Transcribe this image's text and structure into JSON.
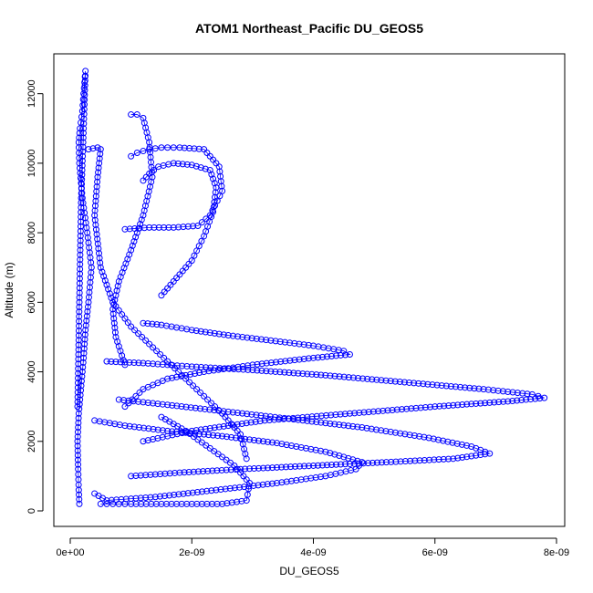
{
  "chart_data": {
    "type": "scatter",
    "title": "ATOM1 Northeast_Pacific DU_GEOS5",
    "xlabel": "DU_GEOS5",
    "ylabel": "Altitude (m)",
    "xlim": [
      0,
      8e-09
    ],
    "ylim": [
      0,
      12700
    ],
    "x_ticks": [
      0,
      2e-09,
      4e-09,
      6e-09,
      8e-09
    ],
    "x_tick_labels": [
      "0e+00",
      "2e-09",
      "4e-09",
      "6e-09",
      "8e-09"
    ],
    "y_ticks": [
      0,
      2000,
      4000,
      6000,
      8000,
      10000,
      12000
    ],
    "y_tick_labels": [
      "0",
      "2000",
      "4000",
      "6000",
      "8000",
      "10000",
      "12000"
    ],
    "grid": false,
    "legend": "none",
    "series": [
      {
        "color": "#0000ff",
        "marker": "open-circle",
        "connected": true,
        "x": [
          1.5e-10,
          1.4e-10,
          1.3e-10,
          1.2e-10,
          1.4e-10,
          1.8e-10,
          2.2e-10,
          2.5e-10,
          3e-10,
          3.5e-10,
          2.8e-10,
          2e-10,
          1.5e-10,
          1.4e-10,
          1.6e-10,
          2e-10,
          2.2e-10,
          2.5e-10,
          2.2e-10,
          1.8e-10,
          1.5e-10,
          1.2e-10
        ],
        "y": [
          200,
          600,
          1200,
          2000,
          2800,
          3600,
          4400,
          5200,
          6000,
          7000,
          8000,
          9000,
          10000,
          10600,
          11000,
          11500,
          12000,
          12650,
          11000,
          9000,
          6000,
          3000
        ]
      },
      {
        "color": "#0000ff",
        "marker": "open-circle",
        "connected": true,
        "x": [
          1.2e-09,
          1.5e-09,
          2e-09,
          2.6e-09,
          3.3e-09,
          4e-09,
          4.5e-09,
          4.6e-09,
          4e-09,
          3e-09,
          2.2e-09,
          1.6e-09,
          1.2e-09,
          9e-10
        ],
        "y": [
          5400,
          5350,
          5200,
          5050,
          4900,
          4750,
          4600,
          4500,
          4400,
          4200,
          4000,
          3800,
          3500,
          3000
        ]
      },
      {
        "color": "#0000ff",
        "marker": "open-circle",
        "connected": true,
        "x": [
          6e-10,
          1.2e-09,
          2e-09,
          3e-09,
          4.2e-09,
          5.5e-09,
          6.8e-09,
          7.6e-09,
          7.8e-09,
          7.2e-09,
          6e-09,
          4.6e-09,
          3.2e-09,
          2e-09,
          1.2e-09
        ],
        "y": [
          4300,
          4250,
          4150,
          4050,
          3900,
          3700,
          3500,
          3350,
          3250,
          3150,
          3000,
          2800,
          2600,
          2300,
          2000
        ]
      },
      {
        "color": "#0000ff",
        "marker": "open-circle",
        "connected": true,
        "x": [
          8e-10,
          1.6e-09,
          2.6e-09,
          3.6e-09,
          4.8e-09,
          5.9e-09,
          6.6e-09,
          6.9e-09,
          6.3e-09,
          5.2e-09,
          4e-09,
          2.8e-09,
          1.8e-09,
          1e-09
        ],
        "y": [
          3200,
          3050,
          2850,
          2650,
          2400,
          2100,
          1850,
          1650,
          1500,
          1400,
          1300,
          1200,
          1100,
          1000
        ]
      },
      {
        "color": "#0000ff",
        "marker": "open-circle",
        "connected": true,
        "x": [
          4e-10,
          9e-10,
          1.6e-09,
          2.5e-09,
          3.4e-09,
          4.2e-09,
          4.8e-09,
          4.7e-09,
          4.2e-09,
          3.4e-09,
          2.4e-09,
          1.4e-09,
          6e-10,
          4e-10
        ],
        "y": [
          2600,
          2450,
          2300,
          2150,
          1950,
          1700,
          1400,
          1200,
          1000,
          800,
          600,
          400,
          300,
          500
        ]
      },
      {
        "color": "#0000ff",
        "marker": "open-circle",
        "connected": true,
        "x": [
          5e-10,
          7e-10,
          1e-09,
          1.5e-09,
          2e-09,
          2.5e-09,
          2.9e-09,
          2.95e-09,
          2.7e-09,
          2.3e-09,
          1.9e-09,
          1.5e-09
        ],
        "y": [
          200,
          200,
          200,
          200,
          200,
          200,
          300,
          800,
          1300,
          1800,
          2300,
          2700
        ]
      },
      {
        "color": "#0000ff",
        "marker": "open-circle",
        "connected": true,
        "x": [
          9e-10,
          1.3e-09,
          1.7e-09,
          2.1e-09,
          2.3e-09,
          2.5e-09,
          2.45e-09,
          2.2e-09,
          1.8e-09,
          1.5e-09,
          1.3e-09,
          1.1e-09,
          1e-09
        ],
        "y": [
          8100,
          8150,
          8150,
          8200,
          8500,
          9200,
          9900,
          10400,
          10450,
          10450,
          10400,
          10300,
          10200
        ]
      },
      {
        "color": "#0000ff",
        "marker": "open-circle",
        "connected": true,
        "x": [
          1.5e-09,
          1.7e-09,
          2e-09,
          2.2e-09,
          2.35e-09,
          2.4e-09,
          2.3e-09,
          2e-09,
          1.7e-09,
          1.45e-09,
          1.3e-09,
          1.2e-09
        ],
        "y": [
          6200,
          6600,
          7200,
          7900,
          8600,
          9300,
          9800,
          9950,
          10000,
          9900,
          9700,
          9500
        ]
      },
      {
        "color": "#0000ff",
        "marker": "open-circle",
        "connected": true,
        "x": [
          1e-09,
          1.1e-09,
          1.2e-09,
          1.3e-09,
          1.35e-09,
          1.2e-09,
          1e-09,
          8e-10,
          7e-10,
          7.5e-10,
          9e-10
        ],
        "y": [
          11400,
          11400,
          11300,
          10600,
          9600,
          8500,
          7500,
          6600,
          5800,
          5000,
          4200
        ]
      },
      {
        "color": "#0000ff",
        "marker": "open-circle",
        "connected": true,
        "x": [
          3e-10,
          4.5e-10,
          5e-10,
          4.5e-10,
          4e-10,
          5e-10,
          7e-10,
          1e-09,
          1.3e-09,
          1.6e-09,
          1.9e-09,
          2.2e-09,
          2.5e-09,
          2.8e-09,
          2.9e-09
        ],
        "y": [
          10400,
          10450,
          10400,
          9600,
          8500,
          7000,
          6000,
          5300,
          4800,
          4300,
          3800,
          3300,
          2800,
          2200,
          1500
        ]
      }
    ]
  }
}
